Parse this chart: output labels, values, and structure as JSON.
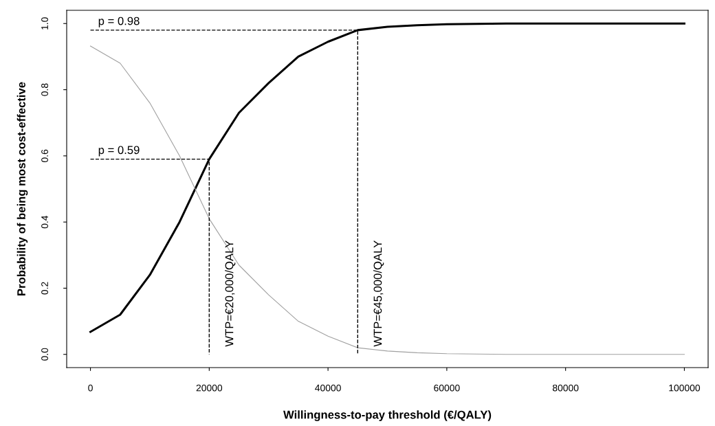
{
  "chart_data": {
    "type": "line",
    "xlabel": "Willingness-to-pay threshold (€/QALY)",
    "ylabel": "Probability of being most cost-effective",
    "x": [
      0,
      5000,
      10000,
      15000,
      20000,
      25000,
      30000,
      35000,
      40000,
      45000,
      50000,
      55000,
      60000,
      70000,
      80000,
      90000,
      100000
    ],
    "series": [
      {
        "color": "#000000",
        "values": [
          0.068,
          0.12,
          0.24,
          0.4,
          0.59,
          0.73,
          0.82,
          0.9,
          0.945,
          0.98,
          0.99,
          0.995,
          0.998,
          1.0,
          1.0,
          1.0,
          1.0
        ]
      },
      {
        "color": "#a0a0a0",
        "values": [
          0.932,
          0.88,
          0.76,
          0.6,
          0.41,
          0.27,
          0.18,
          0.1,
          0.055,
          0.02,
          0.01,
          0.005,
          0.002,
          0.0,
          0.0,
          0.0,
          0.0
        ]
      },
      {
        "color": "#000000",
        "line_style": "dashed",
        "x": [
          0,
          20000,
          20000
        ],
        "values": [
          0.59,
          0.59,
          0
        ]
      },
      {
        "color": "#000000",
        "line_style": "dashed",
        "x": [
          0,
          45000,
          45000
        ],
        "values": [
          0.98,
          0.98,
          0
        ]
      }
    ],
    "annotations": [
      {
        "text": "p = 0.98",
        "x": 0,
        "y": 0.98
      },
      {
        "text": "p = 0.59",
        "x": 0,
        "y": 0.59
      },
      {
        "text": "WTP=€20,000/QALY",
        "x": 20000,
        "y": 0
      },
      {
        "text": "WTP=€45,000/QALY",
        "x": 45000,
        "y": 0
      }
    ],
    "xlim": [
      -4000,
      104000
    ],
    "ylim": [
      -0.04,
      1.04
    ],
    "xticks": [
      0,
      20000,
      40000,
      60000,
      80000,
      100000
    ],
    "yticks": [
      {
        "value": 0,
        "label": "0.0"
      },
      {
        "value": 0.2,
        "label": "0.2"
      },
      {
        "value": 0.4,
        "label": "0.4"
      },
      {
        "value": 0.6,
        "label": "0.6"
      },
      {
        "value": 0.8,
        "label": "0.8"
      },
      {
        "value": 1,
        "label": "1.0"
      }
    ],
    "grid": false,
    "legend": false
  }
}
